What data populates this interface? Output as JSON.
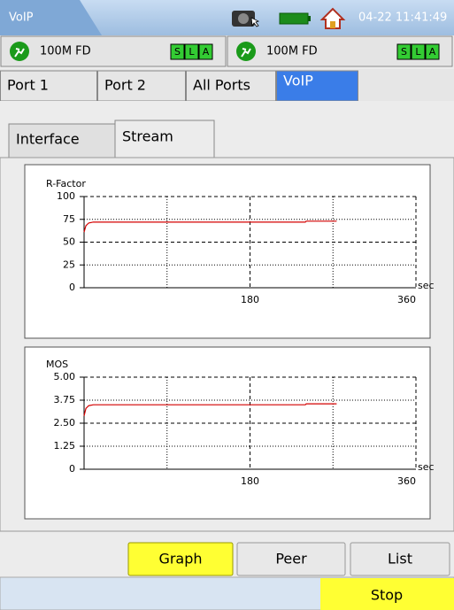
{
  "header": {
    "title": "VoIP",
    "datetime": "04-22 11:41:49"
  },
  "ports": [
    {
      "speed": "100M FD",
      "indicators": [
        "S",
        "L",
        "A"
      ]
    },
    {
      "speed": "100M FD",
      "indicators": [
        "S",
        "L",
        "A"
      ]
    }
  ],
  "tabs": [
    "Port 1",
    "Port 2",
    "All Ports",
    "VoIP"
  ],
  "subtabs": [
    "Interface",
    "Stream"
  ],
  "buttons": [
    "Graph",
    "Peer",
    "List"
  ],
  "stop": "Stop",
  "chart_data": [
    {
      "type": "line",
      "ylabel": "R-Factor",
      "xlabel": "sec",
      "color": "#d40000",
      "x": [
        0,
        2,
        5,
        10,
        20,
        60,
        120,
        180,
        240,
        241,
        274
      ],
      "values": [
        61,
        68,
        71,
        72,
        72,
        72,
        72,
        72,
        72,
        73,
        73
      ],
      "xlim": [
        0,
        360
      ],
      "xticks": [
        180,
        360
      ],
      "minor_xticks": [
        90,
        270
      ],
      "ylim": [
        0,
        100
      ],
      "yticks": [
        0,
        25,
        50,
        75,
        100
      ],
      "grid": true
    },
    {
      "type": "line",
      "ylabel": "MOS",
      "xlabel": "sec",
      "color": "#d40000",
      "x": [
        0,
        2,
        5,
        10,
        20,
        60,
        120,
        180,
        240,
        241,
        274
      ],
      "values": [
        2.9,
        3.3,
        3.45,
        3.5,
        3.5,
        3.5,
        3.5,
        3.5,
        3.5,
        3.55,
        3.55
      ],
      "xlim": [
        0,
        360
      ],
      "xticks": [
        180,
        360
      ],
      "minor_xticks": [
        90,
        270
      ],
      "ylim": [
        0,
        5
      ],
      "yticks": [
        0,
        {
          "value": 1.25,
          "label": "1.25"
        },
        {
          "value": 2.5,
          "label": "2.50"
        },
        {
          "value": 3.75,
          "label": "3.75"
        },
        {
          "value": 5,
          "label": "5.00"
        }
      ],
      "grid": true
    }
  ]
}
